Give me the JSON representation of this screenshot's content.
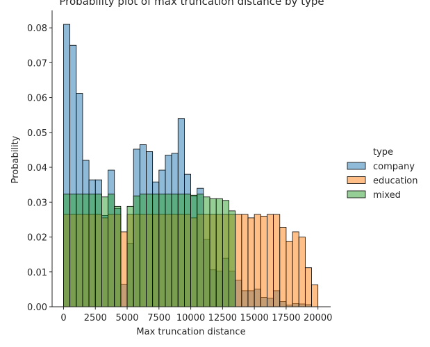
{
  "chart_data": {
    "type": "bar",
    "title": "Probability plot of max truncation distance by type",
    "xlabel": "Max truncation distance",
    "ylabel": "Probability",
    "xlim": [
      -900,
      21000
    ],
    "ylim": [
      0,
      0.085
    ],
    "xticks": [
      0,
      2500,
      5000,
      7500,
      10000,
      12500,
      15000,
      17500,
      20000
    ],
    "yticks": [
      0.0,
      0.01,
      0.02,
      0.03,
      0.04,
      0.05,
      0.06,
      0.07,
      0.08
    ],
    "xtick_labels": [
      "0",
      "2500",
      "5000",
      "7500",
      "10000",
      "12500",
      "15000",
      "17500",
      "20000"
    ],
    "ytick_labels": [
      "0.00",
      "0.01",
      "0.02",
      "0.03",
      "0.04",
      "0.05",
      "0.06",
      "0.07",
      "0.08"
    ],
    "bin_start": 0,
    "bin_width": 500,
    "grid": false,
    "legend_title": "type",
    "legend_position": "right",
    "series": [
      {
        "name": "company",
        "color": "#1f77b4",
        "values": [
          0.081,
          0.075,
          0.0612,
          0.042,
          0.0364,
          0.0364,
          0.0262,
          0.0392,
          0.0282,
          0.0065,
          0.0182,
          0.0452,
          0.0465,
          0.0445,
          0.0358,
          0.0392,
          0.0435,
          0.044,
          0.054,
          0.038,
          0.0318,
          0.034,
          0.0193,
          0.0106,
          0.0102,
          0.0139,
          0.0102,
          0.0076,
          0.0046,
          0.0046,
          0.0051,
          0.0027,
          0.0025,
          0.0046,
          0.0015,
          0.0005,
          0.0009,
          0.0008,
          0.0006,
          0.0
        ]
      },
      {
        "name": "education",
        "color": "#ff7f0e",
        "values": [
          0.0265,
          0.0265,
          0.0265,
          0.0265,
          0.0265,
          0.0265,
          0.0255,
          0.0265,
          0.0265,
          0.0215,
          0.0265,
          0.0265,
          0.0265,
          0.0265,
          0.0265,
          0.0265,
          0.0265,
          0.0265,
          0.0265,
          0.0265,
          0.0255,
          0.0265,
          0.0265,
          0.0265,
          0.0265,
          0.0265,
          0.0265,
          0.0265,
          0.0265,
          0.0255,
          0.0265,
          0.026,
          0.0265,
          0.0265,
          0.0228,
          0.0188,
          0.0215,
          0.02,
          0.0112,
          0.0063
        ]
      },
      {
        "name": "mixed",
        "color": "#2ca02c",
        "values": [
          0.0323,
          0.0323,
          0.0323,
          0.0323,
          0.0323,
          0.0323,
          0.0315,
          0.0323,
          0.0288,
          0.0,
          0.0288,
          0.0318,
          0.0323,
          0.0323,
          0.0323,
          0.0323,
          0.0323,
          0.0323,
          0.0323,
          0.0323,
          0.032,
          0.0323,
          0.0315,
          0.031,
          0.031,
          0.0305,
          0.0275,
          0.0,
          0.0,
          0.0,
          0.0,
          0.0,
          0.0,
          0.0,
          0.0,
          0.0,
          0.0,
          0.0,
          0.0,
          0.0
        ]
      }
    ]
  }
}
